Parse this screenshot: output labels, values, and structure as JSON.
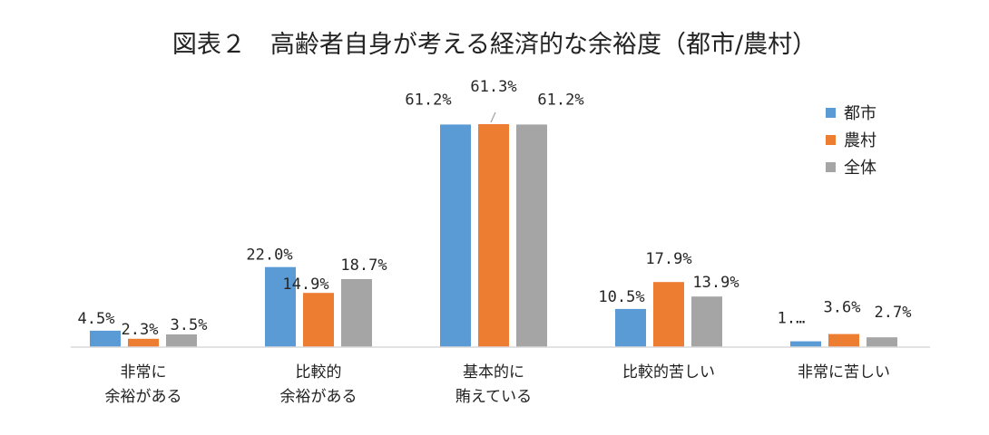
{
  "chart_data": {
    "type": "bar",
    "title": "図表２　高齢者自身が考える経済的な余裕度（都市/農村）",
    "categories": [
      [
        "非常に",
        "余裕がある"
      ],
      [
        "比較的",
        "余裕がある"
      ],
      [
        "基本的に",
        "賄えている"
      ],
      [
        "比較的苦しい"
      ],
      [
        "非常に苦しい"
      ]
    ],
    "series": [
      {
        "name": "都市",
        "color": "#5b9bd5",
        "values": [
          4.5,
          22.0,
          61.2,
          10.5,
          1.6
        ],
        "labels": [
          "4.5%",
          "22.0%",
          "61.2%",
          "10.5%",
          "1.…"
        ]
      },
      {
        "name": "農村",
        "color": "#ed7d31",
        "values": [
          2.3,
          14.9,
          61.3,
          17.9,
          3.6
        ],
        "labels": [
          "2.3%",
          "14.9%",
          "61.3%",
          "17.9%",
          "3.6%"
        ]
      },
      {
        "name": "全体",
        "color": "#a5a5a5",
        "values": [
          3.5,
          18.7,
          61.2,
          13.9,
          2.7
        ],
        "labels": [
          "3.5%",
          "18.7%",
          "61.2%",
          "13.9%",
          "2.7%"
        ]
      }
    ],
    "ylim": [
      0,
      61.3
    ],
    "grid": false,
    "legend_position": "top-right",
    "axis_color": "#d9d9d9"
  }
}
